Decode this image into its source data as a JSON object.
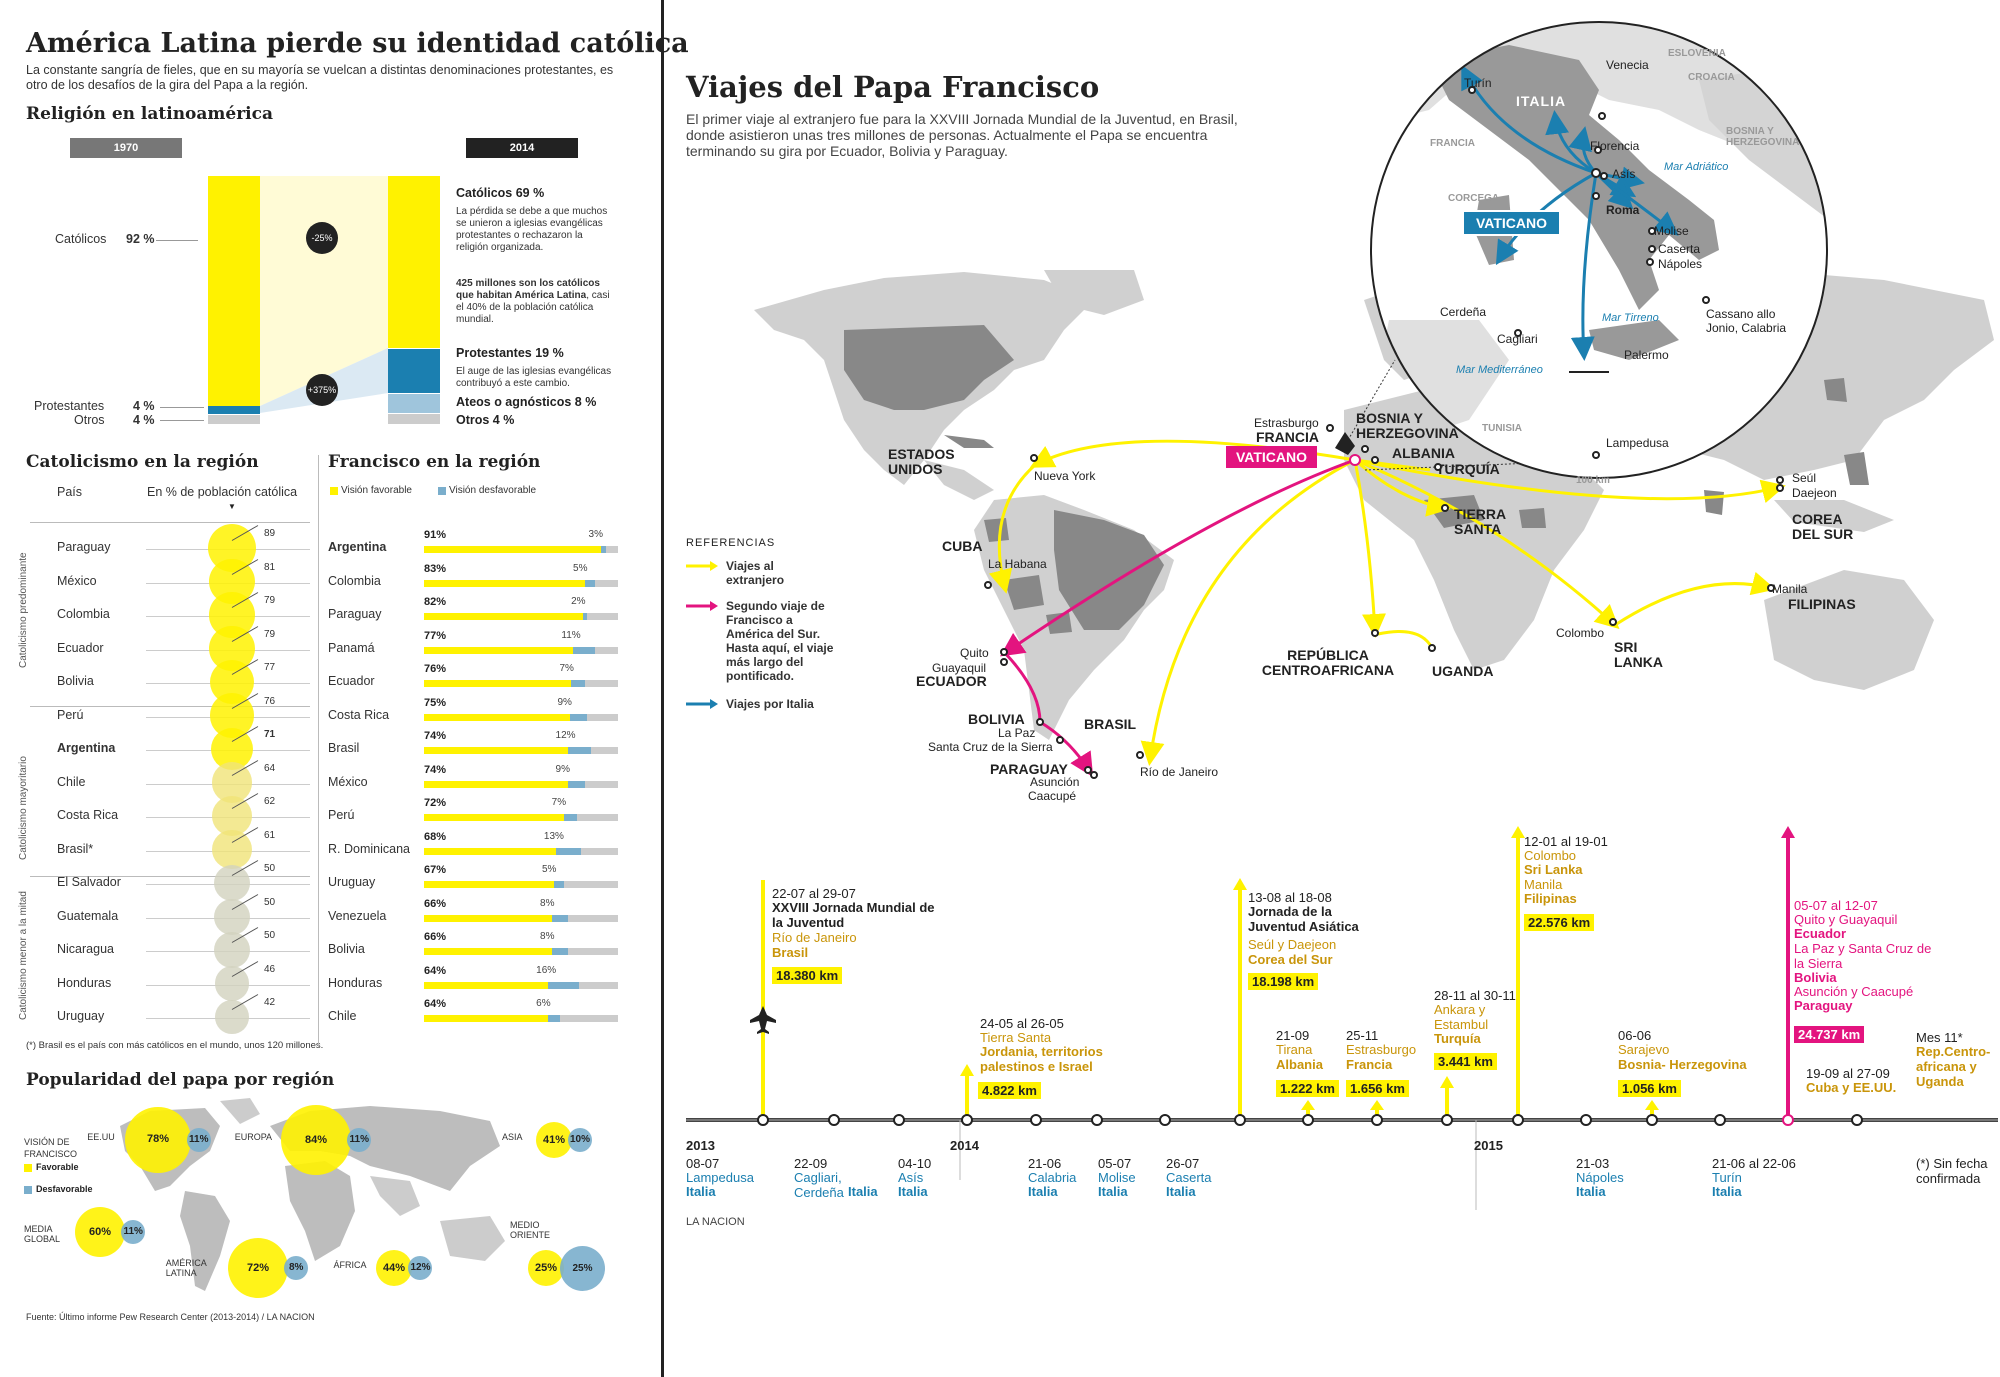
{
  "left": {
    "title": "América Latina pierde su identidad católica",
    "subtitle": "La constante sangría de fieles, que en su mayoría se vuelcan a distintas denominaciones protestantes, es otro de los desafíos de la gira del Papa a la región.",
    "religion_title": "Religión en latinoamérica",
    "year_1970": "1970",
    "year_2014": "2014",
    "lbl_catolicos": "Católicos",
    "val_catolicos": "92 %",
    "lbl_protestantes": "Protestantes",
    "val_protestantes": "4 %",
    "lbl_otros": "Otros",
    "val_otros": "4 %",
    "drop_pct": "-25%",
    "rise_pct": "+375%",
    "cat69": "Católicos 69 %",
    "cat69_note": "La pérdida se debe a que muchos se unieron a iglesias evangélicas protestantes o rechazaron la religión organizada.",
    "millones_bold": "425 millones son los católicos que habitan América Latina",
    "millones_rest": ", casi el 40% de la población católica mundial.",
    "prot19": "Protestantes 19 %",
    "prot19_note": "El auge de las iglesias evangélicas contribuyó a este cambio.",
    "ateos8": "Ateos o agnósticos 8 %",
    "otros4": "Otros 4 %",
    "catol_region_title": "Catolicismo en la región",
    "col_pais": "País",
    "col_pct": "En % de población católica",
    "groups": [
      "Catolicismo predominante",
      "Catolicismo mayoritario",
      "Catolicismo menor a la mitad"
    ],
    "countries": [
      {
        "name": "Paraguay",
        "value": 89
      },
      {
        "name": "México",
        "value": 81
      },
      {
        "name": "Colombia",
        "value": 79
      },
      {
        "name": "Ecuador",
        "value": 79
      },
      {
        "name": "Bolivia",
        "value": 77
      },
      {
        "name": "Perú",
        "value": 76
      },
      {
        "name": "Argentina",
        "value": 71
      },
      {
        "name": "Chile",
        "value": 64
      },
      {
        "name": "Costa Rica",
        "value": 62
      },
      {
        "name": "Brasil*",
        "value": 61
      },
      {
        "name": "El Salvador",
        "value": 50
      },
      {
        "name": "Guatemala",
        "value": 50
      },
      {
        "name": "Nicaragua",
        "value": 50
      },
      {
        "name": "Honduras",
        "value": 46
      },
      {
        "name": "Uruguay",
        "value": 42
      }
    ],
    "footnote": "(*) Brasil es el país con más católicos en el mundo, unos 120 millones.",
    "francisco_title": "Francisco en la región",
    "leg_fav": "Visión favorable",
    "leg_desf": "Visión desfavorable",
    "francisco": [
      {
        "name": "Argentina",
        "fav": "91%",
        "unf": "3%",
        "f": 91,
        "u": 3
      },
      {
        "name": "Colombia",
        "fav": "83%",
        "unf": "5%",
        "f": 83,
        "u": 5
      },
      {
        "name": "Paraguay",
        "fav": "82%",
        "unf": "2%",
        "f": 82,
        "u": 2
      },
      {
        "name": "Panamá",
        "fav": "77%",
        "unf": "11%",
        "f": 77,
        "u": 11
      },
      {
        "name": "Ecuador",
        "fav": "76%",
        "unf": "7%",
        "f": 76,
        "u": 7
      },
      {
        "name": "Costa Rica",
        "fav": "75%",
        "unf": "9%",
        "f": 75,
        "u": 9
      },
      {
        "name": "Brasil",
        "fav": "74%",
        "unf": "12%",
        "f": 74,
        "u": 12
      },
      {
        "name": "México",
        "fav": "74%",
        "unf": "9%",
        "f": 74,
        "u": 9
      },
      {
        "name": "Perú",
        "fav": "72%",
        "unf": "7%",
        "f": 72,
        "u": 7
      },
      {
        "name": "R. Dominicana",
        "fav": "68%",
        "unf": "13%",
        "f": 68,
        "u": 13
      },
      {
        "name": "Uruguay",
        "fav": "67%",
        "unf": "5%",
        "f": 67,
        "u": 5
      },
      {
        "name": "Venezuela",
        "fav": "66%",
        "unf": "8%",
        "f": 66,
        "u": 8
      },
      {
        "name": "Bolivia",
        "fav": "66%",
        "unf": "8%",
        "f": 66,
        "u": 8
      },
      {
        "name": "Honduras",
        "fav": "64%",
        "unf": "16%",
        "f": 64,
        "u": 16
      },
      {
        "name": "Chile",
        "fav": "64%",
        "unf": "6%",
        "f": 64,
        "u": 6
      }
    ],
    "pop_title": "Popularidad del papa por región",
    "vision": "VISIÓN DE FRANCISCO",
    "fav": "Favorable",
    "desf": "Desfavorable",
    "regions": {
      "eeuu": {
        "name": "EE.UU",
        "fav": "78%",
        "unf": "11%"
      },
      "europa": {
        "name": "EUROPA",
        "fav": "84%",
        "unf": "11%"
      },
      "asia": {
        "name": "ASIA",
        "fav": "41%",
        "unf": "10%"
      },
      "media": {
        "name": "MEDIA GLOBAL",
        "fav": "60%",
        "unf": "11%"
      },
      "latam": {
        "name": "AMÉRICA LATINA",
        "fav": "72%",
        "unf": "8%"
      },
      "africa": {
        "name": "ÁFRICA",
        "fav": "44%",
        "unf": "12%"
      },
      "medio": {
        "name": "MEDIO ORIENTE",
        "fav": "25%",
        "unf": "25%"
      }
    },
    "fuente": "Fuente: Último informe Pew Research Center (2013-2014) / LA NACION"
  },
  "right": {
    "title": "Viajes del Papa Francisco",
    "subtitle": "El primer viaje al extranjero fue para la XXVIII Jornada Mundial de la Juventud, en Brasil, donde asistieron unas tres millones de personas. Actualmente el Papa se encuentra terminando su gira por Ecuador, Bolivia y Paraguay.",
    "ref_title": "REFERENCIAS",
    "ref1": "Viajes al extranjero",
    "ref2": "Segundo viaje de Francisco a América del Sur. Hasta aquí, el viaje más largo del pontificado.",
    "ref3": "Viajes por Italia",
    "credit": "LA NACION",
    "map": {
      "estados_unidos": "ESTADOS UNIDOS",
      "nueva_york": "Nueva York",
      "cuba": "CUBA",
      "la_habana": "La Habana",
      "quito": "Quito",
      "guayaquil": "Guayaquil",
      "ecuador": "ECUADOR",
      "bolivia": "BOLIVIA",
      "la_paz": "La Paz",
      "santa_cruz": "Santa Cruz de la Sierra",
      "paraguay": "PARAGUAY",
      "asuncion": "Asunción",
      "caacupe": "Caacupé",
      "brasil": "BRASIL",
      "rio": "Río de Janeiro",
      "estrasburgo": "Estrasburgo",
      "francia": "FRANCIA",
      "vaticano": "VATICANO",
      "bosnia": "BOSNIA Y HERZEGOVINA",
      "albania": "ALBANIA",
      "turquia": "TURQUÍA",
      "tierra_santa": "TIERRA SANTA",
      "rca": "REPÚBLICA CENTROAFRICANA",
      "uganda": "UGANDA",
      "colombo": "Colombo",
      "sri_lanka": "SRI LANKA",
      "manila": "Manila",
      "filipinas": "FILIPINAS",
      "seul": "Seúl",
      "daejeon": "Daejeon",
      "corea": "COREA DEL SUR"
    },
    "italy": {
      "turin": "Turín",
      "venecia": "Venecia",
      "eslovenia": "ESLOVENIA",
      "croacia": "CROACIA",
      "italia": "ITALIA",
      "bosnia": "BOSNIA Y HERZEGOVINA",
      "francia": "FRANCIA",
      "florencia": "Florencia",
      "asis": "Asís",
      "adriatico": "Mar Adriático",
      "corcega": "CORCEGA",
      "vaticano": "VATICANO",
      "roma": "Roma",
      "molise": "Molise",
      "caserta": "Caserta",
      "napoles": "Nápoles",
      "cerdena": "Cerdeña",
      "cagliari": "Cagliari",
      "tirreno": "Mar Tirreno",
      "cassano": "Cassano allo Jonio, Calabria",
      "palermo": "Palermo",
      "mediterraneo": "Mar Mediterráneo",
      "tunisia": "TUNISIA",
      "lampedusa": "Lampedusa",
      "scale": "100 km"
    },
    "timeline": {
      "years": [
        "2013",
        "2014",
        "2015"
      ],
      "e1": {
        "date": "22-07 al 29-07",
        "title": "XXVIII Jornada Mundial de la Juventud",
        "city": "Río de Janeiro",
        "country": "Brasil",
        "km": "18.380 km"
      },
      "e2": {
        "date": "24-05 al 26-05",
        "title": "Tierra Santa",
        "country": "Jordania, territorios palestinos e Israel",
        "km": "4.822 km"
      },
      "e3": {
        "date": "13-08 al 18-08",
        "title": "Jornada de la Juventud Asiática",
        "city": "Seúl y Daejeon",
        "country": "Corea del Sur",
        "km": "18.198 km"
      },
      "e4": {
        "date": "21-09",
        "city": "Tirana",
        "country": "Albania",
        "km": "1.222 km"
      },
      "e5": {
        "date": "25-11",
        "city": "Estrasburgo",
        "country": "Francia",
        "km": "1.656 km"
      },
      "e6": {
        "date": "28-11 al 30-11",
        "city": "Ankara y Estambul",
        "country": "Turquía",
        "km": "3.441 km"
      },
      "e7": {
        "date": "12-01 al 19-01",
        "city": "Colombo",
        "country": "Sri Lanka",
        "city2": "Manila",
        "country2": "Filipinas",
        "km": "22.576 km"
      },
      "e8": {
        "date": "06-06",
        "city": "Sarajevo",
        "country": "Bosnia- Herzegovina",
        "km": "1.056 km"
      },
      "e9": {
        "date": "05-07 al 12-07",
        "city": "Quito y Guayaquil",
        "country": "Ecuador",
        "city2": "La Paz y Santa Cruz de la Sierra",
        "country2": "Bolivia",
        "city3": "Asunción y Caacupé",
        "country3": "Paraguay",
        "km": "24.737 km"
      },
      "e10": {
        "date": "19-09 al 27-09",
        "country": "Cuba y EE.UU."
      },
      "e11": {
        "date": "Mes 11*",
        "country": "Rep.Centro-africana y Uganda"
      },
      "b1": {
        "date": "08-07",
        "city": "Lampedusa",
        "country": "Italia"
      },
      "b2": {
        "date": "22-09",
        "city": "Cagliari, Cerdeña",
        "country": "Italia"
      },
      "b3": {
        "date": "04-10",
        "city": "Asís",
        "country": "Italia"
      },
      "b4": {
        "date": "21-06",
        "city": "Calabria",
        "country": "Italia"
      },
      "b5": {
        "date": "05-07",
        "city": "Molise",
        "country": "Italia"
      },
      "b6": {
        "date": "26-07",
        "city": "Caserta",
        "country": "Italia"
      },
      "b7": {
        "date": "21-03",
        "city": "Nápoles",
        "country": "Italia"
      },
      "b8": {
        "date": "21-06 al 22-06",
        "city": "Turín",
        "country": "Italia"
      },
      "b9": {
        "note": "(*) Sin fecha confirmada"
      }
    }
  },
  "colors": {
    "yellow": "#fff200",
    "blue": "#1b7fb0",
    "magenta": "#e3147f",
    "lightblue": "#7aaecc",
    "land": "#d0d0d0",
    "darkland": "#888888"
  }
}
